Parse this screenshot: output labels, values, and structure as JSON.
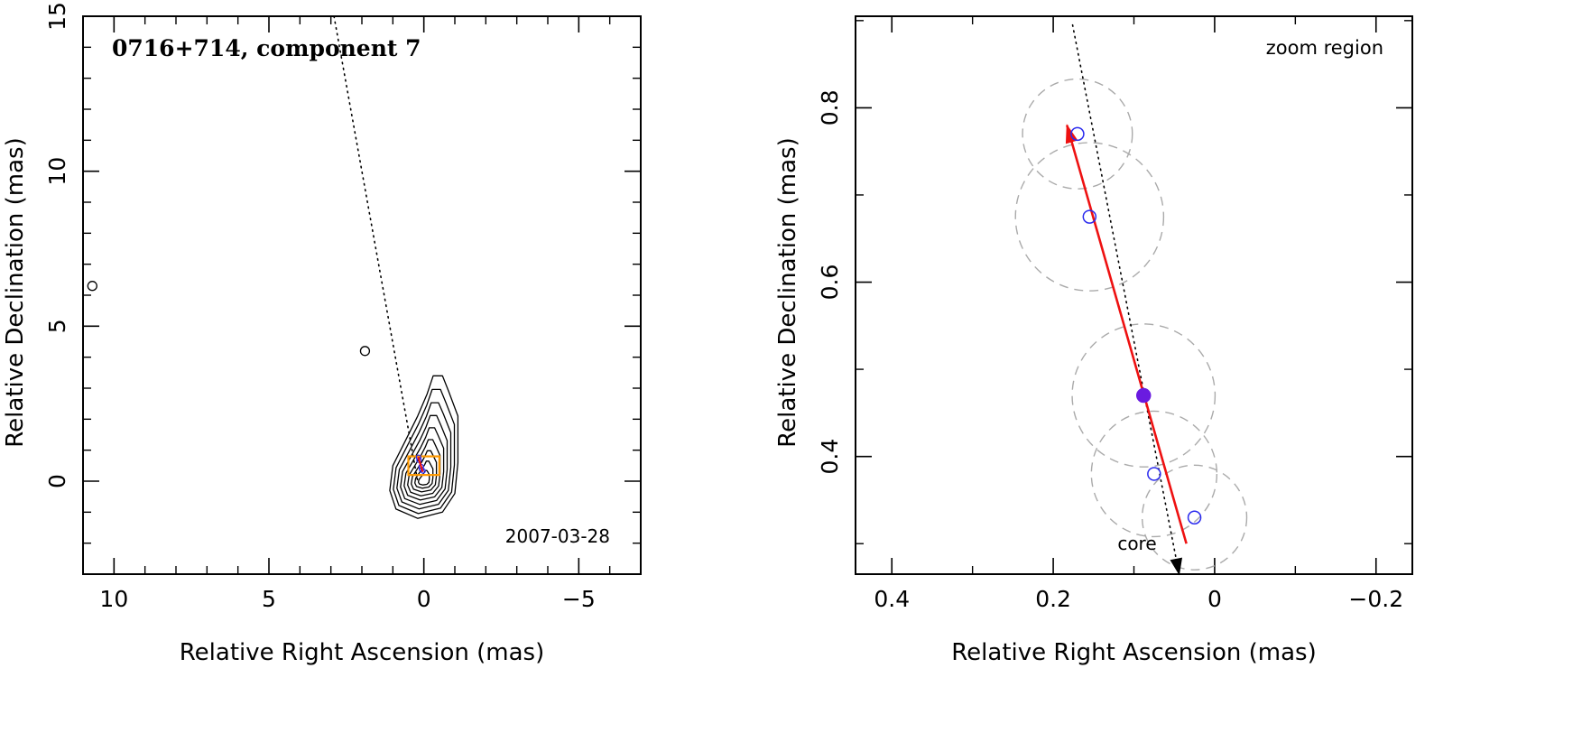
{
  "chart_data": [
    {
      "type": "contour",
      "title": "0716+714, component 7",
      "annotation": "2007-03-28",
      "xlabel": "Relative Right Ascension (mas)",
      "ylabel": "Relative Declination (mas)",
      "xlim": [
        11,
        -7
      ],
      "ylim": [
        -3,
        15
      ],
      "xticks": [
        10,
        5,
        0,
        -5
      ],
      "xtick_labels": [
        "10",
        "5",
        "0",
        "−5"
      ],
      "yticks": [
        0,
        5,
        10,
        15
      ],
      "ytick_labels": [
        "0",
        "5",
        "10",
        "15"
      ],
      "dotted_line": [
        [
          2.9,
          15.0
        ],
        [
          0.2,
          0
        ]
      ],
      "zoom_box": {
        "x": [
          0.5,
          -0.5
        ],
        "y": [
          0.2,
          0.8
        ]
      },
      "contour_center": [
        0,
        0
      ],
      "outer_contour": [
        [
          0.2,
          -1.2
        ],
        [
          0.9,
          -0.9
        ],
        [
          1.1,
          -0.3
        ],
        [
          1.0,
          0.5
        ],
        [
          0.6,
          1.3
        ],
        [
          0.2,
          2.1
        ],
        [
          -0.1,
          2.8
        ],
        [
          -0.3,
          3.4
        ],
        [
          -0.6,
          3.4
        ],
        [
          -0.8,
          2.9
        ],
        [
          -1.1,
          2.1
        ],
        [
          -1.1,
          1.3
        ],
        [
          -1.1,
          0.6
        ],
        [
          -1.0,
          -0.4
        ],
        [
          -0.6,
          -1.0
        ]
      ],
      "contour_levels": 9,
      "isolated_components": [
        [
          10.7,
          6.3
        ],
        [
          1.9,
          4.2
        ]
      ],
      "component_points": [
        [
          0.17,
          0.77
        ],
        [
          0.155,
          0.675
        ],
        [
          0.088,
          0.47
        ],
        [
          0.075,
          0.38
        ],
        [
          0.025,
          0.33
        ]
      ]
    },
    {
      "type": "scatter",
      "annotation": "zoom region",
      "core_label": "core",
      "xlabel": "Relative Right Ascension (mas)",
      "ylabel": "Relative Declination (mas)",
      "xlim": [
        0.445,
        -0.245
      ],
      "ylim": [
        0.265,
        0.905
      ],
      "xticks": [
        0.4,
        0.2,
        0,
        -0.2
      ],
      "xtick_labels": [
        "0.4",
        "0.2",
        "0",
        "−0.2"
      ],
      "yticks": [
        0.4,
        0.6,
        0.8
      ],
      "ytick_labels": [
        "0.4",
        "0.6",
        "0.8"
      ],
      "points": [
        {
          "x": 0.17,
          "y": 0.77,
          "error_radius": 0.063
        },
        {
          "x": 0.155,
          "y": 0.675,
          "error_radius": 0.085
        },
        {
          "x": 0.088,
          "y": 0.47,
          "error_radius": 0.082
        },
        {
          "x": 0.075,
          "y": 0.38,
          "error_radius": 0.072
        },
        {
          "x": 0.025,
          "y": 0.33,
          "error_radius": 0.06
        }
      ],
      "highlight_point": {
        "x": 0.088,
        "y": 0.47
      },
      "fit_arrow": {
        "from": [
          0.035,
          0.3
        ],
        "to": [
          0.183,
          0.78
        ]
      },
      "dotted_line": {
        "from": [
          0.176,
          0.895
        ],
        "to": [
          0.044,
          0.265
        ]
      },
      "colors": {
        "points": "#2a2aee",
        "highlight": "#6a1be0",
        "arrow": "#ee1111",
        "error_circles": "#aaaaaa",
        "zoom_box": "#ff9900"
      }
    }
  ]
}
